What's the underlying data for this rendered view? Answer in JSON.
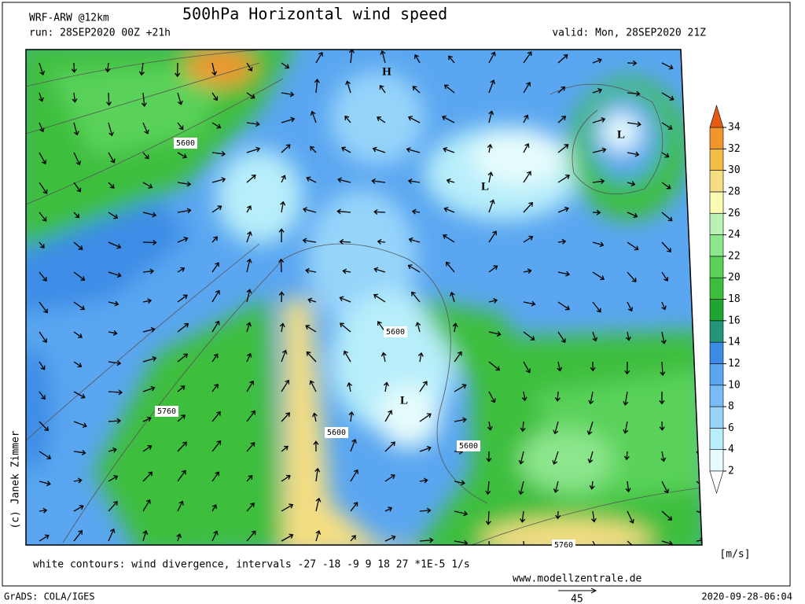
{
  "header": {
    "model": "WRF-ARW @12km",
    "title": "500hPa Horizontal wind speed",
    "run": "run: 28SEP2020 00Z +21h",
    "valid": "valid: Mon, 28SEP2020 21Z"
  },
  "map": {
    "pressure_centers": [
      "H",
      "L",
      "L",
      "L"
    ],
    "contour_labels": [
      "5600",
      "5600",
      "5600",
      "5600",
      "5760",
      "5760"
    ]
  },
  "colorbar": {
    "ticks": [
      2,
      4,
      6,
      8,
      10,
      12,
      14,
      16,
      18,
      20,
      22,
      24,
      26,
      28,
      30,
      32,
      34
    ],
    "colors": [
      "#e6fcfc",
      "#b8eefa",
      "#96d4fa",
      "#78bcf7",
      "#5aa6f0",
      "#3c8ce6",
      "#23967a",
      "#1ea532",
      "#3cbe3c",
      "#5ad25a",
      "#8ce68c",
      "#b9f2b4",
      "#fafab4",
      "#f5de82",
      "#f0be46",
      "#f0962d"
    ],
    "unit": "[m/s]"
  },
  "footer": {
    "credit": "(c) Janek Zimmer",
    "contours_note": "white contours: wind divergence, intervals -27 -18 -9 9 18 27 *1E-5 1/s",
    "website": "www.modellzentrale.de",
    "software": "GrADS: COLA/IGES",
    "vector_scale": "45",
    "timestamp": "2020-09-28-06:04"
  }
}
